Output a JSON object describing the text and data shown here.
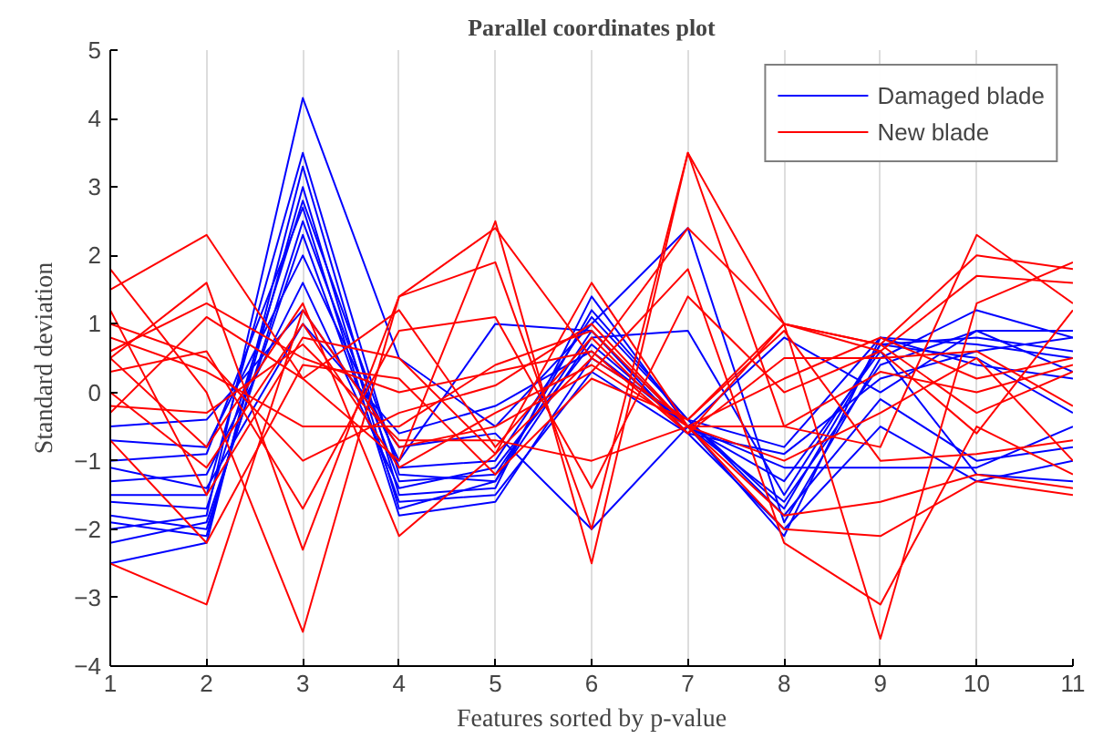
{
  "chart_data": {
    "type": "line",
    "title": "Parallel coordinates plot",
    "xlabel": "Features sorted by p-value",
    "ylabel": "Standard deviation",
    "x": [
      1,
      2,
      3,
      4,
      5,
      6,
      7,
      8,
      9,
      10,
      11
    ],
    "xlim": [
      1,
      11
    ],
    "xticks": [
      1,
      2,
      3,
      4,
      5,
      6,
      7,
      8,
      9,
      10,
      11
    ],
    "ylim": [
      -4,
      5
    ],
    "yticks": [
      -4,
      -3,
      -2,
      -1,
      0,
      1,
      2,
      3,
      4,
      5
    ],
    "grid": "x",
    "legend": "top right",
    "series": [
      {
        "name": "Damaged blade",
        "color": "#0000ff",
        "values": [
          -2.0,
          -1.8,
          4.3,
          0.5,
          -0.5,
          1.0,
          2.4,
          -1.9,
          0.5,
          1.2,
          0.8
        ]
      },
      {
        "color": "#0000ff",
        "values": [
          -1.5,
          -1.5,
          3.5,
          -1.2,
          -1.3,
          0.8,
          0.9,
          -1.5,
          0.7,
          0.8,
          0.6
        ]
      },
      {
        "color": "#0000ff",
        "values": [
          -2.5,
          -2.2,
          3.3,
          -1.5,
          -1.4,
          1.4,
          -0.5,
          -2.1,
          0.8,
          0.7,
          0.5
        ]
      },
      {
        "color": "#0000ff",
        "values": [
          -1.0,
          -0.9,
          2.7,
          -1.8,
          -1.6,
          0.5,
          -0.4,
          -1.8,
          -0.1,
          -1.0,
          -0.8
        ]
      },
      {
        "color": "#0000ff",
        "values": [
          -1.8,
          -2.0,
          2.5,
          -1.3,
          -1.2,
          0.9,
          -0.5,
          -1.3,
          0.6,
          -1.2,
          -1.3
        ]
      },
      {
        "color": "#0000ff",
        "values": [
          -0.7,
          -0.8,
          2.0,
          -1.0,
          1.0,
          0.9,
          -0.6,
          -0.9,
          0.2,
          0.6,
          0.8
        ]
      },
      {
        "color": "#0000ff",
        "values": [
          -1.3,
          -1.2,
          1.6,
          -1.4,
          -1.1,
          0.7,
          -0.5,
          -1.6,
          0.4,
          0.9,
          0.3
        ]
      },
      {
        "color": "#0000ff",
        "values": [
          -2.2,
          -1.9,
          2.3,
          -1.6,
          -1.5,
          0.3,
          -0.6,
          -2.0,
          -0.5,
          -1.3,
          -1.0
        ]
      },
      {
        "color": "#0000ff",
        "values": [
          -0.5,
          -0.4,
          1.2,
          -0.8,
          -0.6,
          -2.0,
          -0.5,
          -1.1,
          -1.1,
          -1.1,
          -0.5
        ]
      },
      {
        "color": "#0000ff",
        "values": [
          -1.6,
          -1.7,
          2.8,
          -1.1,
          -1.0,
          1.1,
          -0.4,
          -0.8,
          0.8,
          0.4,
          0.2
        ]
      },
      {
        "color": "#0000ff",
        "values": [
          -1.1,
          -1.4,
          1.0,
          -0.6,
          -0.2,
          0.6,
          -0.5,
          0.8,
          0.0,
          0.9,
          0.9
        ]
      },
      {
        "color": "#0000ff",
        "values": [
          -1.9,
          -2.1,
          3.0,
          -1.7,
          -1.3,
          1.2,
          -0.4,
          -1.7,
          0.7,
          0.5,
          -0.3
        ]
      },
      {
        "name": "New blade",
        "color": "#ff0000",
        "values": [
          1.8,
          0.0,
          -3.5,
          1.4,
          1.9,
          -2.0,
          3.5,
          -0.5,
          -0.8,
          2.3,
          1.3
        ]
      },
      {
        "color": "#ff0000",
        "values": [
          1.5,
          2.3,
          0.2,
          -1.0,
          2.5,
          -2.5,
          3.5,
          1.0,
          0.7,
          2.0,
          1.8
        ]
      },
      {
        "color": "#ff0000",
        "values": [
          0.5,
          1.6,
          -2.3,
          1.4,
          2.4,
          0.5,
          2.4,
          1.0,
          -3.6,
          1.3,
          1.9
        ]
      },
      {
        "color": "#ff0000",
        "values": [
          -2.5,
          -3.1,
          1.2,
          -0.8,
          -0.5,
          0.3,
          1.8,
          -2.2,
          -3.1,
          -0.5,
          -1.2
        ]
      },
      {
        "color": "#ff0000",
        "values": [
          0.5,
          -0.8,
          1.3,
          -2.1,
          -0.9,
          1.6,
          -0.5,
          -2.0,
          -2.1,
          -1.3,
          -1.5
        ]
      },
      {
        "color": "#ff0000",
        "values": [
          0.3,
          0.6,
          -1.7,
          0.9,
          1.1,
          -1.4,
          1.4,
          0.0,
          0.6,
          1.7,
          1.6
        ]
      },
      {
        "color": "#ff0000",
        "values": [
          1.2,
          -1.5,
          0.8,
          0.5,
          -0.9,
          0.5,
          -0.4,
          1.0,
          0.7,
          -0.3,
          0.3
        ]
      },
      {
        "color": "#ff0000",
        "values": [
          -0.3,
          1.1,
          0.2,
          1.2,
          -0.8,
          0.8,
          -0.6,
          0.5,
          0.5,
          0.6,
          -0.2
        ]
      },
      {
        "color": "#ff0000",
        "values": [
          0.0,
          -1.1,
          1.0,
          -1.1,
          -0.3,
          0.4,
          -0.5,
          -1.8,
          -1.6,
          -1.2,
          -1.4
        ]
      },
      {
        "color": "#ff0000",
        "values": [
          0.8,
          0.3,
          -0.5,
          -0.5,
          0.4,
          0.9,
          -0.5,
          -0.5,
          0.3,
          0.0,
          0.4
        ]
      },
      {
        "color": "#ff0000",
        "values": [
          -0.7,
          -2.2,
          0.4,
          0.2,
          -1.2,
          0.2,
          -0.4,
          0.9,
          -1.0,
          -0.9,
          -0.7
        ]
      },
      {
        "color": "#ff0000",
        "values": [
          1.0,
          0.5,
          -1.0,
          -0.3,
          0.1,
          1.0,
          -0.5,
          -1.0,
          -0.3,
          0.5,
          -1.0
        ]
      },
      {
        "color": "#ff0000",
        "values": [
          -0.2,
          -0.3,
          0.7,
          -0.7,
          -0.7,
          -1.0,
          -0.5,
          0.2,
          0.8,
          0.2,
          0.5
        ]
      },
      {
        "color": "#ff0000",
        "values": [
          0.6,
          1.3,
          0.5,
          0.0,
          0.3,
          0.6,
          -0.6,
          1.0,
          0.6,
          -0.6,
          1.2
        ]
      }
    ]
  }
}
